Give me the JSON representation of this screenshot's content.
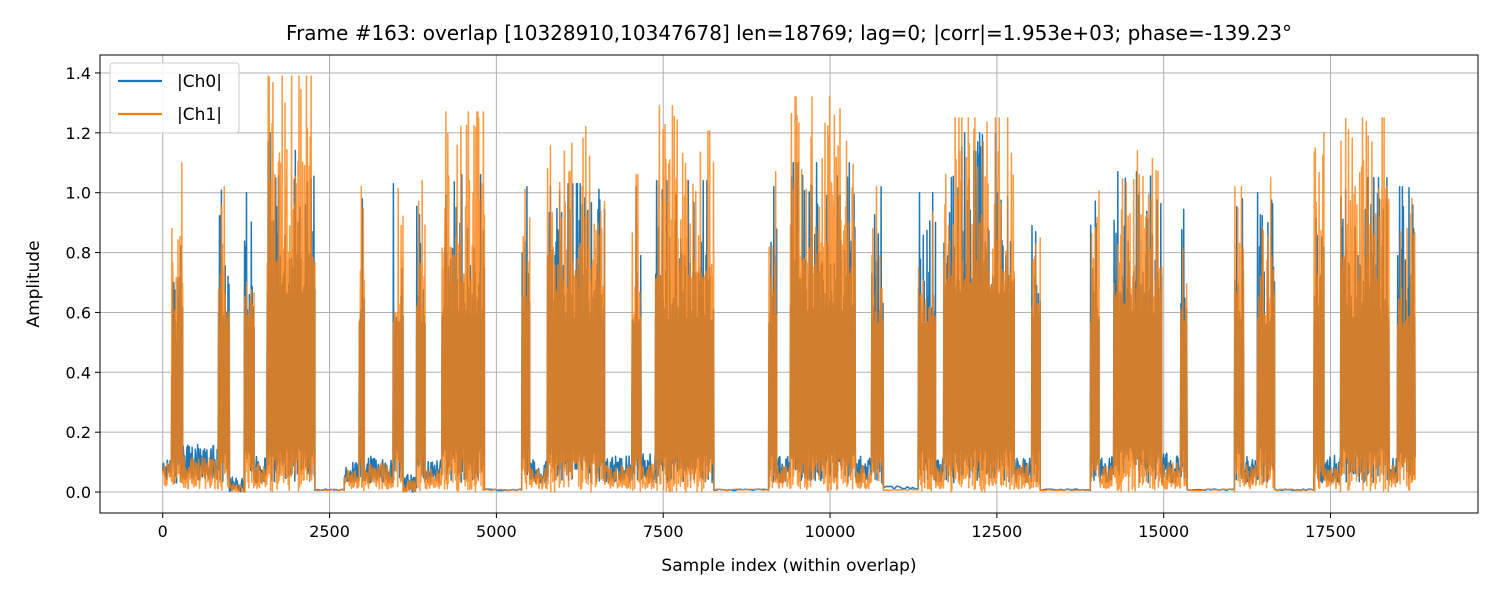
{
  "chart_data": {
    "type": "line",
    "title": "Frame #163: overlap [10328910,10347678]  len=18769; lag=0; |corr|=1.953e+03; phase=-139.23°",
    "xlabel": "Sample index (within overlap)",
    "ylabel": "Amplitude",
    "xlim": [
      -940,
      19710
    ],
    "ylim": [
      -0.07,
      1.46
    ],
    "xticks": [
      0,
      2500,
      5000,
      7500,
      10000,
      12500,
      15000,
      17500
    ],
    "xtick_labels": [
      "0",
      "2500",
      "5000",
      "7500",
      "10000",
      "12500",
      "15000",
      "17500"
    ],
    "yticks": [
      0.0,
      0.2,
      0.4,
      0.6,
      0.8,
      1.0,
      1.2,
      1.4
    ],
    "ytick_labels": [
      "0.0",
      "0.2",
      "0.4",
      "0.6",
      "0.8",
      "1.0",
      "1.2",
      "1.4"
    ],
    "grid": true,
    "legend_position": "top-left",
    "series": [
      {
        "name": "|Ch0|",
        "color": "#1f77b4"
      },
      {
        "name": "|Ch1|",
        "color": "#ff7f0e"
      }
    ],
    "bursts": [
      {
        "start": 0,
        "end": 130,
        "peak0": 0.12,
        "peak1": 0.1,
        "floor0": 0.04,
        "floor1": 0.02,
        "type": "low"
      },
      {
        "start": 130,
        "end": 180,
        "peak0": 0.7,
        "peak1": 0.88,
        "floor0": 0.03,
        "floor1": 0.0,
        "type": "high"
      },
      {
        "start": 180,
        "end": 300,
        "peak0": 0.9,
        "peak1": 1.1,
        "floor0": 0.03,
        "floor1": 0.0,
        "type": "high"
      },
      {
        "start": 300,
        "end": 830,
        "peak0": 0.16,
        "peak1": 0.12,
        "floor0": 0.04,
        "floor1": 0.01,
        "type": "low"
      },
      {
        "start": 830,
        "end": 1000,
        "peak0": 1.02,
        "peak1": 1.02,
        "floor0": 0.03,
        "floor1": 0.0,
        "type": "high"
      },
      {
        "start": 1000,
        "end": 1220,
        "peak0": 0.05,
        "peak1": 0.03,
        "floor0": 0.0,
        "floor1": 0.0,
        "type": "low"
      },
      {
        "start": 1220,
        "end": 1370,
        "peak0": 1.0,
        "peak1": 1.03,
        "floor0": 0.03,
        "floor1": 0.0,
        "type": "high"
      },
      {
        "start": 1370,
        "end": 1560,
        "peak0": 0.13,
        "peak1": 0.1,
        "floor0": 0.03,
        "floor1": 0.01,
        "type": "low"
      },
      {
        "start": 1560,
        "end": 2280,
        "peak0": 1.2,
        "peak1": 1.39,
        "floor0": 0.03,
        "floor1": 0.0,
        "type": "high"
      },
      {
        "start": 2280,
        "end": 2720,
        "peak0": 0.01,
        "peak1": 0.01,
        "floor0": 0.0,
        "floor1": 0.0,
        "type": "flat"
      },
      {
        "start": 2720,
        "end": 2940,
        "peak0": 0.1,
        "peak1": 0.08,
        "floor0": 0.03,
        "floor1": 0.01,
        "type": "low"
      },
      {
        "start": 2940,
        "end": 3020,
        "peak0": 0.98,
        "peak1": 1.02,
        "floor0": 0.03,
        "floor1": 0.0,
        "type": "high"
      },
      {
        "start": 3020,
        "end": 3450,
        "peak0": 0.12,
        "peak1": 0.1,
        "floor0": 0.03,
        "floor1": 0.01,
        "type": "low"
      },
      {
        "start": 3450,
        "end": 3600,
        "peak0": 1.03,
        "peak1": 1.03,
        "floor0": 0.03,
        "floor1": 0.0,
        "type": "high"
      },
      {
        "start": 3600,
        "end": 3800,
        "peak0": 0.06,
        "peak1": 0.04,
        "floor0": 0.0,
        "floor1": 0.0,
        "type": "low"
      },
      {
        "start": 3800,
        "end": 3930,
        "peak0": 1.02,
        "peak1": 1.04,
        "floor0": 0.03,
        "floor1": 0.0,
        "type": "high"
      },
      {
        "start": 3930,
        "end": 4180,
        "peak0": 0.11,
        "peak1": 0.08,
        "floor0": 0.03,
        "floor1": 0.01,
        "type": "low"
      },
      {
        "start": 4180,
        "end": 4820,
        "peak0": 1.06,
        "peak1": 1.27,
        "floor0": 0.03,
        "floor1": 0.0,
        "type": "high"
      },
      {
        "start": 4820,
        "end": 5380,
        "peak0": 0.01,
        "peak1": 0.01,
        "floor0": 0.0,
        "floor1": 0.0,
        "type": "flat"
      },
      {
        "start": 5380,
        "end": 5500,
        "peak0": 1.02,
        "peak1": 1.1,
        "floor0": 0.03,
        "floor1": 0.0,
        "type": "high"
      },
      {
        "start": 5500,
        "end": 5760,
        "peak0": 0.11,
        "peak1": 0.08,
        "floor0": 0.03,
        "floor1": 0.01,
        "type": "low"
      },
      {
        "start": 5760,
        "end": 6620,
        "peak0": 1.03,
        "peak1": 1.22,
        "floor0": 0.03,
        "floor1": 0.0,
        "type": "high"
      },
      {
        "start": 6620,
        "end": 7030,
        "peak0": 0.12,
        "peak1": 0.09,
        "floor0": 0.03,
        "floor1": 0.01,
        "type": "low"
      },
      {
        "start": 7030,
        "end": 7170,
        "peak0": 1.02,
        "peak1": 1.06,
        "floor0": 0.03,
        "floor1": 0.0,
        "type": "high"
      },
      {
        "start": 7170,
        "end": 7380,
        "peak0": 0.13,
        "peak1": 0.1,
        "floor0": 0.03,
        "floor1": 0.01,
        "type": "low"
      },
      {
        "start": 7380,
        "end": 8260,
        "peak0": 1.04,
        "peak1": 1.29,
        "floor0": 0.03,
        "floor1": 0.0,
        "type": "high"
      },
      {
        "start": 8260,
        "end": 9080,
        "peak0": 0.01,
        "peak1": 0.01,
        "floor0": 0.0,
        "floor1": 0.0,
        "type": "flat"
      },
      {
        "start": 9080,
        "end": 9200,
        "peak0": 1.02,
        "peak1": 1.07,
        "floor0": 0.03,
        "floor1": 0.0,
        "type": "high"
      },
      {
        "start": 9200,
        "end": 9400,
        "peak0": 0.12,
        "peak1": 0.09,
        "floor0": 0.03,
        "floor1": 0.01,
        "type": "low"
      },
      {
        "start": 9400,
        "end": 10380,
        "peak0": 1.1,
        "peak1": 1.32,
        "floor0": 0.03,
        "floor1": 0.0,
        "type": "high"
      },
      {
        "start": 10380,
        "end": 10620,
        "peak0": 0.12,
        "peak1": 0.09,
        "floor0": 0.03,
        "floor1": 0.01,
        "type": "low"
      },
      {
        "start": 10620,
        "end": 10800,
        "peak0": 1.02,
        "peak1": 1.02,
        "floor0": 0.03,
        "floor1": 0.0,
        "type": "high"
      },
      {
        "start": 10800,
        "end": 11320,
        "peak0": 0.02,
        "peak1": 0.01,
        "floor0": 0.0,
        "floor1": 0.0,
        "type": "flat"
      },
      {
        "start": 11320,
        "end": 11580,
        "peak0": 1.0,
        "peak1": 1.03,
        "floor0": 0.03,
        "floor1": 0.0,
        "type": "high"
      },
      {
        "start": 11580,
        "end": 11700,
        "peak0": 0.12,
        "peak1": 0.09,
        "floor0": 0.03,
        "floor1": 0.01,
        "type": "low"
      },
      {
        "start": 11700,
        "end": 12760,
        "peak0": 1.2,
        "peak1": 1.25,
        "floor0": 0.03,
        "floor1": 0.0,
        "type": "high"
      },
      {
        "start": 12760,
        "end": 13020,
        "peak0": 0.12,
        "peak1": 0.1,
        "floor0": 0.03,
        "floor1": 0.01,
        "type": "low"
      },
      {
        "start": 13020,
        "end": 13150,
        "peak0": 1.02,
        "peak1": 1.04,
        "floor0": 0.03,
        "floor1": 0.0,
        "type": "high"
      },
      {
        "start": 13150,
        "end": 13900,
        "peak0": 0.01,
        "peak1": 0.01,
        "floor0": 0.0,
        "floor1": 0.0,
        "type": "flat"
      },
      {
        "start": 13900,
        "end": 14030,
        "peak0": 1.02,
        "peak1": 1.02,
        "floor0": 0.03,
        "floor1": 0.0,
        "type": "high"
      },
      {
        "start": 14030,
        "end": 14250,
        "peak0": 0.12,
        "peak1": 0.09,
        "floor0": 0.03,
        "floor1": 0.01,
        "type": "low"
      },
      {
        "start": 14250,
        "end": 14970,
        "peak0": 1.07,
        "peak1": 1.14,
        "floor0": 0.03,
        "floor1": 0.0,
        "type": "high"
      },
      {
        "start": 14970,
        "end": 15250,
        "peak0": 0.13,
        "peak1": 0.1,
        "floor0": 0.03,
        "floor1": 0.01,
        "type": "low"
      },
      {
        "start": 15250,
        "end": 15350,
        "peak0": 1.02,
        "peak1": 1.02,
        "floor0": 0.03,
        "floor1": 0.0,
        "type": "high"
      },
      {
        "start": 15350,
        "end": 16060,
        "peak0": 0.01,
        "peak1": 0.01,
        "floor0": 0.0,
        "floor1": 0.0,
        "type": "flat"
      },
      {
        "start": 16060,
        "end": 16200,
        "peak0": 0.98,
        "peak1": 1.02,
        "floor0": 0.03,
        "floor1": 0.0,
        "type": "high"
      },
      {
        "start": 16200,
        "end": 16400,
        "peak0": 0.12,
        "peak1": 0.09,
        "floor0": 0.03,
        "floor1": 0.01,
        "type": "low"
      },
      {
        "start": 16400,
        "end": 16660,
        "peak0": 1.0,
        "peak1": 1.05,
        "floor0": 0.03,
        "floor1": 0.0,
        "type": "high"
      },
      {
        "start": 16660,
        "end": 17250,
        "peak0": 0.01,
        "peak1": 0.01,
        "floor0": 0.0,
        "floor1": 0.0,
        "type": "flat"
      },
      {
        "start": 17250,
        "end": 17400,
        "peak0": 1.02,
        "peak1": 1.2,
        "floor0": 0.03,
        "floor1": 0.0,
        "type": "high"
      },
      {
        "start": 17400,
        "end": 17650,
        "peak0": 0.13,
        "peak1": 0.1,
        "floor0": 0.03,
        "floor1": 0.01,
        "type": "low"
      },
      {
        "start": 17650,
        "end": 18380,
        "peak0": 1.05,
        "peak1": 1.25,
        "floor0": 0.03,
        "floor1": 0.0,
        "type": "high"
      },
      {
        "start": 18380,
        "end": 18500,
        "peak0": 0.12,
        "peak1": 0.09,
        "floor0": 0.03,
        "floor1": 0.01,
        "type": "low"
      },
      {
        "start": 18500,
        "end": 18768,
        "peak0": 1.02,
        "peak1": 0.98,
        "floor0": 0.03,
        "floor1": 0.0,
        "type": "high"
      }
    ]
  }
}
